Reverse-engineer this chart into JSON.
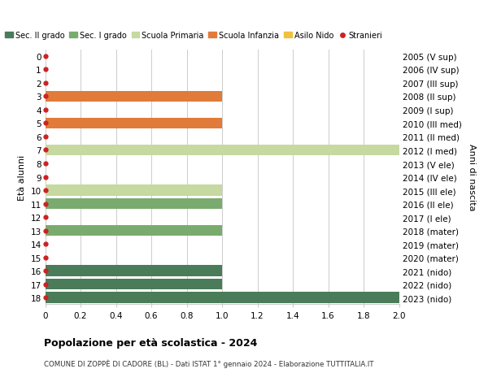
{
  "ages": [
    18,
    17,
    16,
    15,
    14,
    13,
    12,
    11,
    10,
    9,
    8,
    7,
    6,
    5,
    4,
    3,
    2,
    1,
    0
  ],
  "years": [
    "2005 (V sup)",
    "2006 (IV sup)",
    "2007 (III sup)",
    "2008 (II sup)",
    "2009 (I sup)",
    "2010 (III med)",
    "2011 (II med)",
    "2012 (I med)",
    "2013 (V ele)",
    "2014 (IV ele)",
    "2015 (III ele)",
    "2016 (II ele)",
    "2017 (I ele)",
    "2018 (mater)",
    "2019 (mater)",
    "2020 (mater)",
    "2021 (nido)",
    "2022 (nido)",
    "2023 (nido)"
  ],
  "bar_values": [
    2.0,
    1.0,
    1.0,
    0,
    0,
    1.0,
    0,
    1.0,
    1.0,
    0,
    0,
    2.0,
    0,
    1.0,
    0,
    1.0,
    0,
    0,
    0
  ],
  "bar_colors": [
    "#4a7c59",
    "#4a7c59",
    "#4a7c59",
    "#4a7c59",
    "#4a7c59",
    "#7aab6e",
    "#7aab6e",
    "#7aab6e",
    "#c5d9a0",
    "#c5d9a0",
    "#c5d9a0",
    "#c5d9a0",
    "#c5d9a0",
    "#e07b39",
    "#e07b39",
    "#e07b39",
    "#f0c040",
    "#f0c040",
    "#f0c040"
  ],
  "stranieri_dot_color": "#cc2222",
  "legend_labels": [
    "Sec. II grado",
    "Sec. I grado",
    "Scuola Primaria",
    "Scuola Infanzia",
    "Asilo Nido",
    "Stranieri"
  ],
  "legend_colors": [
    "#4a7c59",
    "#7aab6e",
    "#c5d9a0",
    "#e07b39",
    "#f0c040",
    "#cc2222"
  ],
  "ylabel_left": "Età alunni",
  "ylabel_right": "Anni di nascita",
  "xlim": [
    0,
    2.0
  ],
  "xticks": [
    0,
    0.2,
    0.4,
    0.6,
    0.8,
    1.0,
    1.2,
    1.4,
    1.6,
    1.8,
    2.0
  ],
  "title": "Popolazione per età scolastica - 2024",
  "subtitle": "COMUNE DI ZOPPÈ DI CADORE (BL) - Dati ISTAT 1° gennaio 2024 - Elaborazione TUTTITALIA.IT",
  "bg_color": "#ffffff",
  "grid_color": "#cccccc",
  "bar_height": 0.82
}
